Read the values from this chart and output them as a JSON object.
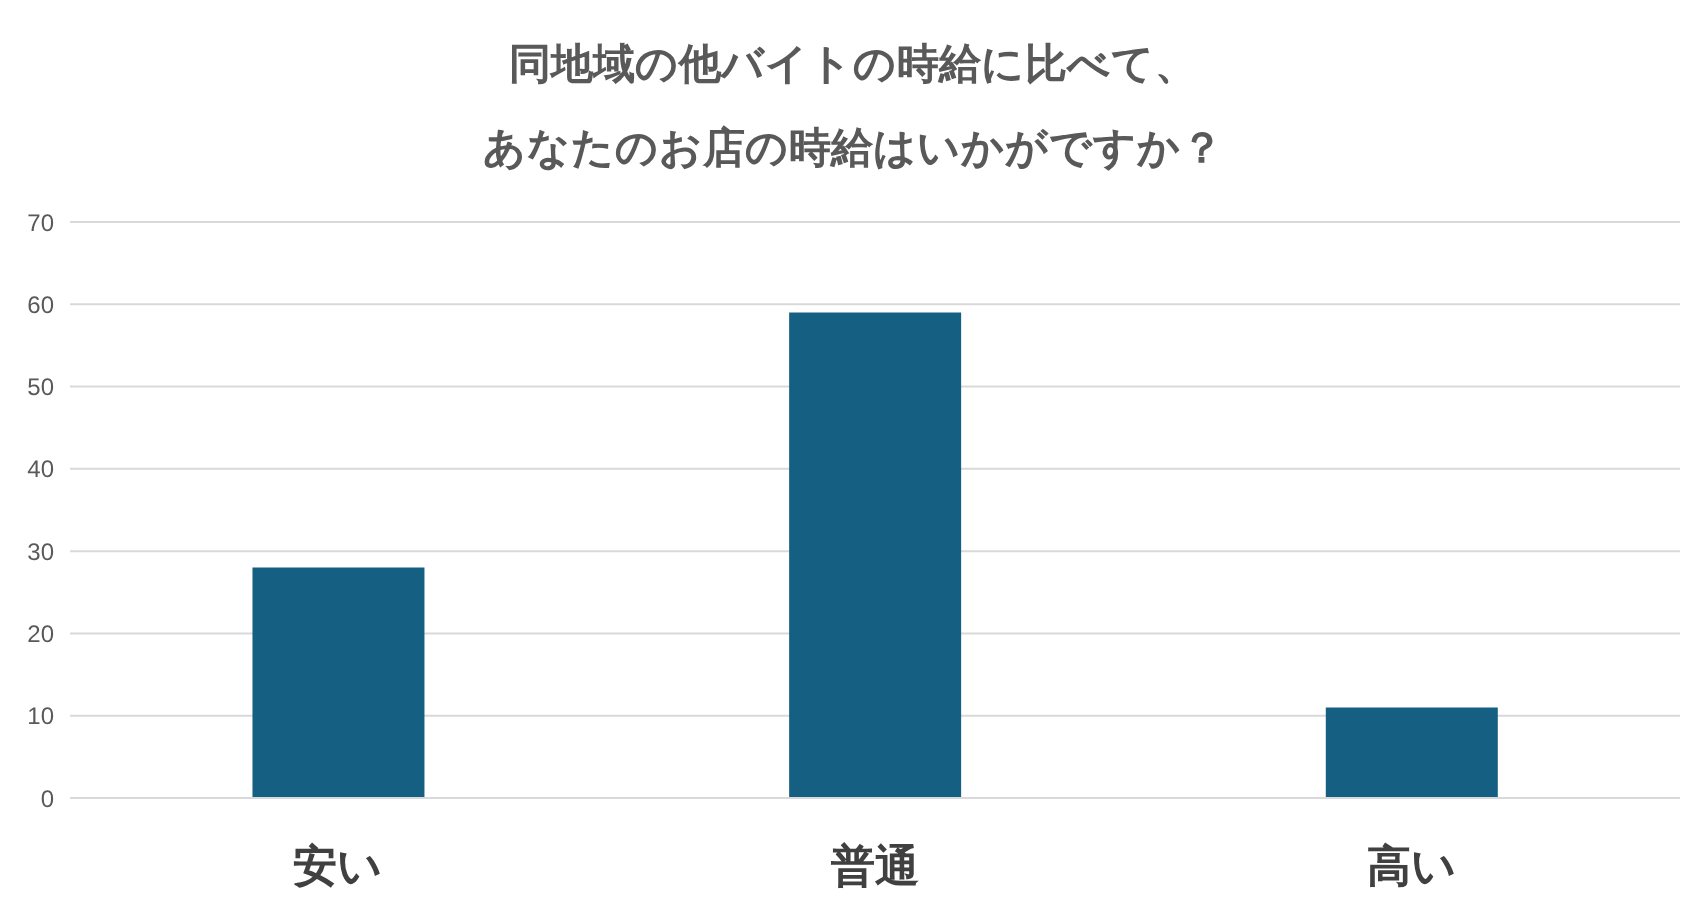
{
  "chart_data": {
    "type": "bar",
    "title": "同地域の他バイトの時給に比べて、あなたのお店の時給はいかがですか？",
    "categories": [
      "安い",
      "普通",
      "高い"
    ],
    "values": [
      28,
      59,
      11
    ],
    "color": "#156082",
    "ylim": [
      0,
      70
    ],
    "yticks": [
      0,
      10,
      20,
      30,
      40,
      50,
      60,
      70
    ],
    "grid": "y"
  }
}
